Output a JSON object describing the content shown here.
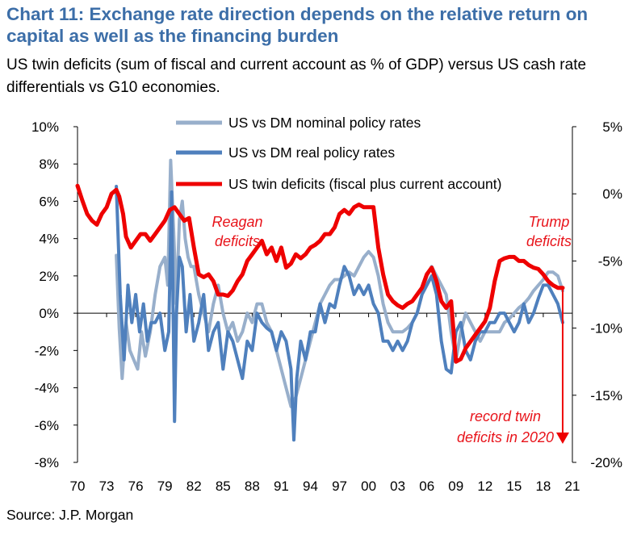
{
  "header": {
    "title": "Chart 11: Exchange rate direction depends on the relative return on capital as well as the financing burden",
    "subtitle": "US twin deficits (sum of fiscal and current account as % of GDP) versus US cash rate differentials vs G10 economies."
  },
  "footer": {
    "source": "Source: J.P. Morgan"
  },
  "chart_data": {
    "type": "line",
    "x_range": [
      1970,
      2021
    ],
    "x_tick_labels": [
      "70",
      "73",
      "76",
      "79",
      "82",
      "85",
      "88",
      "91",
      "94",
      "97",
      "00",
      "03",
      "06",
      "09",
      "12",
      "15",
      "18",
      "21"
    ],
    "x_tick_values": [
      1970,
      1973,
      1976,
      1979,
      1982,
      1985,
      1988,
      1991,
      1994,
      1997,
      2000,
      2003,
      2006,
      2009,
      2012,
      2015,
      2018,
      2021
    ],
    "y_left": {
      "range": [
        -8,
        10
      ],
      "ticks": [
        10,
        8,
        6,
        4,
        2,
        0,
        -2,
        -4,
        -6,
        -8
      ],
      "tick_labels": [
        "10%",
        "8%",
        "6%",
        "4%",
        "2%",
        "0%",
        "-2%",
        "-4%",
        "-6%",
        "-8%"
      ]
    },
    "y_right": {
      "range": [
        -20,
        5
      ],
      "ticks": [
        5,
        0,
        -5,
        -10,
        -15,
        -20
      ],
      "tick_labels": [
        "5%",
        "0%",
        "-5%",
        "-10%",
        "-15%",
        "-20%"
      ]
    },
    "legend_placement": "top-center",
    "grid": false,
    "series": [
      {
        "name": "US vs DM nominal policy rates",
        "axis": "left",
        "color": "#98afcb",
        "x": [
          1974.0,
          1974.3,
          1974.6,
          1975.0,
          1975.4,
          1975.8,
          1976.2,
          1976.6,
          1977.0,
          1977.5,
          1978.0,
          1978.5,
          1979.0,
          1979.3,
          1979.6,
          1979.9,
          1980.2,
          1980.5,
          1980.8,
          1981.1,
          1981.4,
          1981.7,
          1982.0,
          1982.5,
          1983.0,
          1983.5,
          1984.0,
          1984.5,
          1985.0,
          1985.5,
          1986.0,
          1986.5,
          1987.0,
          1987.5,
          1988.0,
          1988.5,
          1989.0,
          1989.5,
          1990.0,
          1990.5,
          1991.0,
          1991.5,
          1992.0,
          1992.5,
          1993.0,
          1993.5,
          1994.0,
          1994.5,
          1995.0,
          1995.5,
          1996.0,
          1996.5,
          1997.0,
          1997.5,
          1998.0,
          1998.5,
          1999.0,
          1999.5,
          2000.0,
          2000.5,
          2001.0,
          2001.5,
          2002.0,
          2002.5,
          2003.0,
          2003.5,
          2004.0,
          2004.5,
          2005.0,
          2005.5,
          2006.0,
          2006.5,
          2007.0,
          2007.5,
          2008.0,
          2008.5,
          2009.0,
          2009.5,
          2010.0,
          2010.5,
          2011.0,
          2011.5,
          2012.0,
          2012.5,
          2013.0,
          2013.5,
          2014.0,
          2014.5,
          2015.0,
          2015.5,
          2016.0,
          2016.5,
          2017.0,
          2017.5,
          2018.0,
          2018.5,
          2019.0,
          2019.5,
          2020.0
        ],
        "y": [
          3.1,
          -0.8,
          -3.5,
          -0.5,
          -2.0,
          -2.5,
          -3.0,
          -1.0,
          -2.3,
          -1.0,
          1.0,
          2.5,
          3.0,
          1.5,
          8.2,
          4.5,
          0.5,
          5.0,
          6.0,
          4.0,
          3.0,
          2.5,
          2.5,
          1.0,
          0.0,
          -1.0,
          0.5,
          1.5,
          0.0,
          -1.0,
          -0.5,
          -1.5,
          -1.0,
          0.0,
          -0.5,
          0.5,
          0.5,
          -0.5,
          -1.0,
          -2.0,
          -3.0,
          -4.0,
          -5.0,
          -4.5,
          -3.5,
          -2.5,
          -1.5,
          -0.5,
          0.5,
          1.0,
          1.5,
          1.8,
          1.8,
          2.0,
          2.2,
          2.0,
          2.5,
          3.0,
          3.3,
          3.0,
          2.0,
          0.5,
          -0.5,
          -1.0,
          -1.0,
          -1.0,
          -0.8,
          -0.5,
          0.0,
          1.0,
          2.0,
          2.5,
          2.0,
          1.5,
          1.0,
          -1.0,
          -2.5,
          -1.0,
          0.0,
          -0.5,
          -1.0,
          -1.5,
          -1.0,
          -1.0,
          -1.0,
          -1.0,
          -0.5,
          -0.3,
          0.0,
          0.3,
          0.5,
          0.8,
          1.2,
          1.5,
          1.8,
          2.2,
          2.2,
          2.0,
          1.2
        ]
      },
      {
        "name": "US vs DM real policy rates",
        "axis": "left",
        "color": "#4f80bd",
        "x": [
          1974.0,
          1974.4,
          1974.8,
          1975.2,
          1975.6,
          1976.0,
          1976.4,
          1976.8,
          1977.2,
          1977.6,
          1978.0,
          1978.5,
          1979.0,
          1979.4,
          1979.7,
          1980.0,
          1980.2,
          1980.5,
          1980.8,
          1981.2,
          1981.6,
          1982.0,
          1982.5,
          1983.0,
          1983.5,
          1984.0,
          1984.5,
          1985.0,
          1985.5,
          1986.0,
          1986.5,
          1987.0,
          1987.5,
          1988.0,
          1988.5,
          1989.0,
          1989.5,
          1990.0,
          1990.5,
          1991.0,
          1991.5,
          1992.0,
          1992.3,
          1992.6,
          1993.0,
          1993.5,
          1994.0,
          1994.5,
          1995.0,
          1995.5,
          1996.0,
          1996.5,
          1997.0,
          1997.5,
          1998.0,
          1998.5,
          1999.0,
          1999.5,
          2000.0,
          2000.5,
          2001.0,
          2001.5,
          2002.0,
          2002.5,
          2003.0,
          2003.5,
          2004.0,
          2004.5,
          2005.0,
          2005.5,
          2006.0,
          2006.5,
          2007.0,
          2007.5,
          2008.0,
          2008.5,
          2009.0,
          2009.5,
          2010.0,
          2010.5,
          2011.0,
          2011.5,
          2012.0,
          2012.5,
          2013.0,
          2013.5,
          2014.0,
          2014.5,
          2015.0,
          2015.5,
          2016.0,
          2016.5,
          2017.0,
          2017.5,
          2018.0,
          2018.5,
          2019.0,
          2019.5,
          2020.0
        ],
        "y": [
          6.8,
          1.0,
          -2.5,
          1.5,
          -0.5,
          1.0,
          -1.0,
          0.5,
          -1.5,
          -0.5,
          -0.5,
          0.0,
          -2.0,
          -1.0,
          6.5,
          -5.8,
          0.0,
          3.0,
          2.5,
          -1.0,
          1.0,
          -1.5,
          -0.5,
          1.0,
          -2.0,
          -1.0,
          -0.5,
          -3.0,
          -1.0,
          -1.5,
          -2.5,
          -3.5,
          -1.5,
          -2.0,
          0.0,
          -0.5,
          -0.8,
          -1.0,
          -2.0,
          -1.0,
          -1.5,
          -3.0,
          -6.8,
          -3.5,
          -1.5,
          -2.5,
          -1.0,
          -1.0,
          0.5,
          -0.5,
          0.5,
          0.3,
          1.5,
          2.5,
          2.0,
          1.0,
          1.5,
          1.0,
          1.5,
          0.5,
          0.0,
          -1.5,
          -1.5,
          -2.0,
          -1.5,
          -2.0,
          -1.5,
          -0.5,
          0.0,
          1.0,
          1.5,
          2.0,
          1.0,
          -1.5,
          -3.0,
          -3.2,
          -1.0,
          -0.5,
          -2.0,
          -2.5,
          -1.5,
          -1.0,
          -1.0,
          -0.5,
          -0.5,
          0.0,
          0.0,
          -0.5,
          -1.0,
          -0.5,
          0.5,
          -0.5,
          0.0,
          0.8,
          1.5,
          1.5,
          1.0,
          0.5,
          -0.5
        ]
      },
      {
        "name": "US twin deficits (fiscal plus current account)",
        "axis": "right",
        "color": "#ee0000",
        "x": [
          1970.0,
          1970.5,
          1971.0,
          1971.5,
          1972.0,
          1972.5,
          1973.0,
          1973.5,
          1974.0,
          1974.3,
          1974.7,
          1975.0,
          1975.5,
          1976.0,
          1976.5,
          1977.0,
          1977.5,
          1978.0,
          1978.5,
          1979.0,
          1979.5,
          1980.0,
          1980.5,
          1981.0,
          1981.5,
          1982.0,
          1982.5,
          1983.0,
          1983.5,
          1984.0,
          1984.5,
          1985.0,
          1985.5,
          1986.0,
          1986.5,
          1987.0,
          1987.5,
          1988.0,
          1988.5,
          1989.0,
          1989.5,
          1990.0,
          1990.5,
          1991.0,
          1991.5,
          1992.0,
          1992.5,
          1993.0,
          1993.5,
          1994.0,
          1994.5,
          1995.0,
          1995.5,
          1996.0,
          1996.5,
          1997.0,
          1997.5,
          1998.0,
          1998.5,
          1999.0,
          1999.5,
          2000.0,
          2000.5,
          2001.0,
          2001.5,
          2002.0,
          2002.5,
          2003.0,
          2003.5,
          2004.0,
          2004.5,
          2005.0,
          2005.5,
          2006.0,
          2006.5,
          2007.0,
          2007.5,
          2008.0,
          2008.5,
          2009.0,
          2009.5,
          2010.0,
          2010.5,
          2011.0,
          2011.5,
          2012.0,
          2012.5,
          2013.0,
          2013.5,
          2014.0,
          2014.5,
          2015.0,
          2015.5,
          2016.0,
          2016.5,
          2017.0,
          2017.5,
          2018.0,
          2018.5,
          2019.0,
          2019.5,
          2020.0
        ],
        "y": [
          0.6,
          -0.5,
          -1.5,
          -2.0,
          -2.3,
          -1.5,
          -1.0,
          0.0,
          0.3,
          -0.2,
          -1.5,
          -3.2,
          -4.0,
          -3.5,
          -3.0,
          -3.0,
          -3.5,
          -3.0,
          -2.5,
          -2.0,
          -1.2,
          -1.0,
          -1.5,
          -2.0,
          -1.8,
          -4.0,
          -6.0,
          -6.2,
          -6.0,
          -6.5,
          -7.5,
          -7.5,
          -7.6,
          -7.2,
          -6.5,
          -6.0,
          -5.0,
          -4.5,
          -4.0,
          -3.5,
          -4.5,
          -4.0,
          -5.0,
          -4.0,
          -5.5,
          -5.2,
          -4.5,
          -4.8,
          -4.5,
          -4.0,
          -3.8,
          -3.5,
          -3.0,
          -3.0,
          -2.5,
          -1.5,
          -1.2,
          -1.5,
          -1.0,
          -0.8,
          -1.0,
          -1.0,
          -1.0,
          -4.0,
          -6.0,
          -7.5,
          -8.0,
          -8.3,
          -8.5,
          -8.2,
          -8.0,
          -7.5,
          -7.0,
          -6.0,
          -5.5,
          -6.5,
          -8.0,
          -8.5,
          -8.0,
          -12.5,
          -12.3,
          -11.5,
          -11.0,
          -10.5,
          -10.0,
          -9.5,
          -8.5,
          -6.5,
          -5.0,
          -4.8,
          -4.7,
          -4.7,
          -5.0,
          -5.0,
          -5.3,
          -5.5,
          -5.6,
          -6.0,
          -6.5,
          -6.8,
          -7.0,
          -7.0
        ]
      }
    ],
    "arrow": {
      "from_x": 2020.0,
      "from_y": -7.0,
      "to_x": 2020.0,
      "to_y": -18.5,
      "axis": "right",
      "color": "#ee0000"
    },
    "annotations": [
      {
        "lines": [
          "Reagan",
          "deficits"
        ]
      },
      {
        "lines": [
          "Trump",
          "deficits"
        ]
      },
      {
        "lines": [
          "record twin",
          "deficits in 2020"
        ]
      }
    ]
  }
}
